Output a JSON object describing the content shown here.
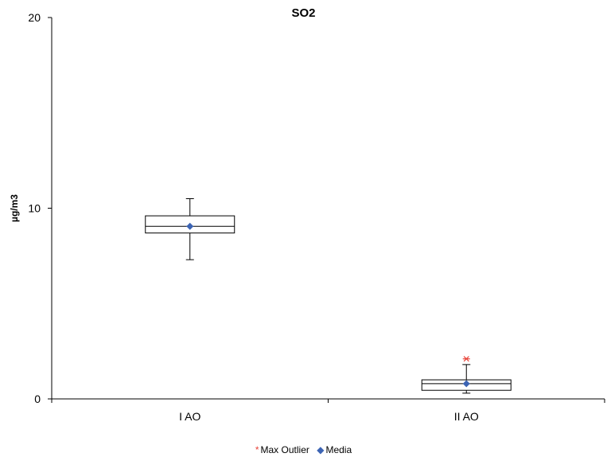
{
  "chart_data": {
    "type": "box",
    "title": "SO2",
    "xlabel": "",
    "ylabel": "µg/m3",
    "ylim": [
      0,
      20
    ],
    "y_ticks": [
      "0",
      "10",
      "20"
    ],
    "categories": [
      "I AO",
      "II AO"
    ],
    "boxes": [
      {
        "category": "I AO",
        "whisker_low": 7.3,
        "q1": 8.7,
        "median": 9.05,
        "q3": 9.6,
        "whisker_high": 10.5,
        "mean": 9.05
      },
      {
        "category": "II AO",
        "whisker_low": 0.3,
        "q1": 0.45,
        "median": 0.8,
        "q3": 1.0,
        "whisker_high": 1.8,
        "mean": 0.8,
        "max_outlier": 2.1
      }
    ],
    "legend": [
      {
        "name": "Max Outlier",
        "symbol": "*",
        "color": "#e8443a"
      },
      {
        "name": "Media",
        "symbol": "◆",
        "color": "#3c64b4"
      }
    ],
    "legend_position": "bottom",
    "grid": false
  }
}
